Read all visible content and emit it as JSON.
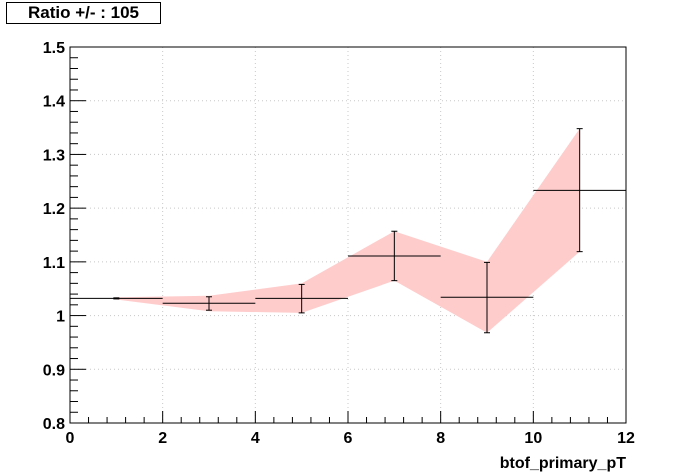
{
  "chart_data": {
    "type": "scatter",
    "title": "Ratio +/- : 105",
    "xlabel": "btof_primary_pT",
    "ylabel": "",
    "xlim": [
      0,
      12
    ],
    "ylim": [
      0.8,
      1.5
    ],
    "xticks": [
      0,
      2,
      4,
      6,
      8,
      10,
      12
    ],
    "yticks": [
      0.8,
      0.9,
      1.0,
      1.1,
      1.2,
      1.3,
      1.4,
      1.5
    ],
    "xtick_labels": [
      "0",
      "2",
      "4",
      "6",
      "8",
      "10",
      "12"
    ],
    "ytick_labels": [
      "0.8",
      "0.9",
      "1",
      "1.1",
      "1.2",
      "1.3",
      "1.4",
      "1.5"
    ],
    "grid": true,
    "points": [
      {
        "x": 1,
        "xlo": 0,
        "xhi": 2,
        "y": 1.032,
        "ylo": 1.031,
        "yhi": 1.033
      },
      {
        "x": 3,
        "xlo": 2,
        "xhi": 4,
        "y": 1.023,
        "ylo": 1.01,
        "yhi": 1.035
      },
      {
        "x": 5,
        "xlo": 4,
        "xhi": 6,
        "y": 1.032,
        "ylo": 1.005,
        "yhi": 1.058
      },
      {
        "x": 7,
        "xlo": 6,
        "xhi": 8,
        "y": 1.111,
        "ylo": 1.065,
        "yhi": 1.157
      },
      {
        "x": 9,
        "xlo": 8,
        "xhi": 10,
        "y": 1.034,
        "ylo": 0.968,
        "yhi": 1.099
      },
      {
        "x": 11,
        "xlo": 10,
        "xhi": 12,
        "y": 1.233,
        "ylo": 1.119,
        "yhi": 1.348
      }
    ],
    "band": [
      {
        "x": 1,
        "lo": 1.03,
        "hi": 1.034
      },
      {
        "x": 3,
        "lo": 1.008,
        "hi": 1.037
      },
      {
        "x": 5,
        "lo": 1.005,
        "hi": 1.06
      },
      {
        "x": 7,
        "lo": 1.065,
        "hi": 1.157
      },
      {
        "x": 9,
        "lo": 0.968,
        "hi": 1.1
      },
      {
        "x": 11,
        "lo": 1.119,
        "hi": 1.348
      }
    ],
    "colors": {
      "band": "#ffcccc",
      "points": "#000000",
      "grid": "#c8c8c8"
    }
  }
}
